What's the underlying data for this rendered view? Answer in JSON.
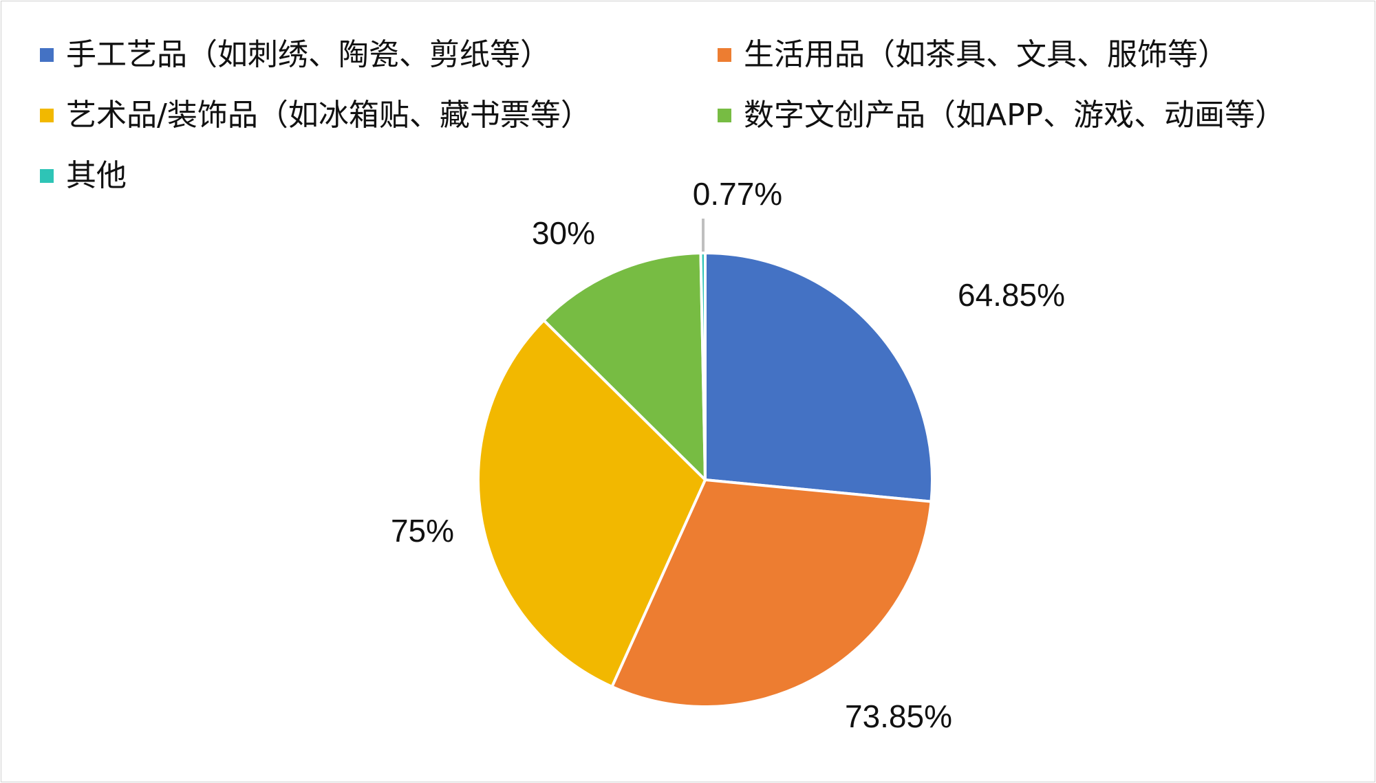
{
  "chart_data": {
    "type": "pie",
    "title": "",
    "legend_position": "top-left",
    "categories": [
      "手工艺品（如刺绣、陶瓷、剪纸等）",
      "生活用品（如茶具、文具、服饰等）",
      "艺术品/装饰品（如冰箱贴、藏书票等）",
      "数字文创产品（如APP、游戏、动画等）",
      "其他"
    ],
    "values": [
      64.85,
      73.85,
      75,
      30,
      0.77
    ],
    "data_labels": [
      "64.85%",
      "73.85%",
      "75%",
      "30%",
      "0.77%"
    ],
    "colors": [
      "#4472C4",
      "#ED7D31",
      "#F2B800",
      "#77BC43",
      "#2EC4B6"
    ]
  }
}
